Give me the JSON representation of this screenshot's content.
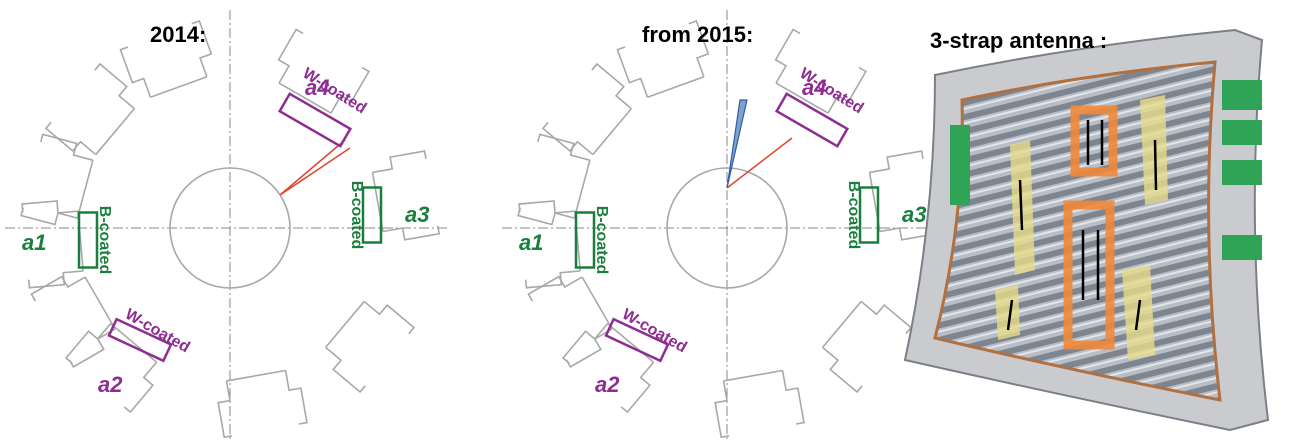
{
  "panels": [
    {
      "title": "2014:",
      "antennas": [
        {
          "name": "a1",
          "coating": "B-coated"
        },
        {
          "name": "a2",
          "coating": "W-coated"
        },
        {
          "name": "a3",
          "coating": "B-coated"
        },
        {
          "name": "a4",
          "coating": "W-coated"
        }
      ]
    },
    {
      "title": "from 2015:",
      "antennas": [
        {
          "name": "a1",
          "coating": "B-coated"
        },
        {
          "name": "a2",
          "coating": "W-coated"
        },
        {
          "name": "a3",
          "coating": "B-coated"
        },
        {
          "name": "a4",
          "coating": "W-coated"
        }
      ]
    }
  ],
  "photo": {
    "title": "3-strap antenna :"
  }
}
